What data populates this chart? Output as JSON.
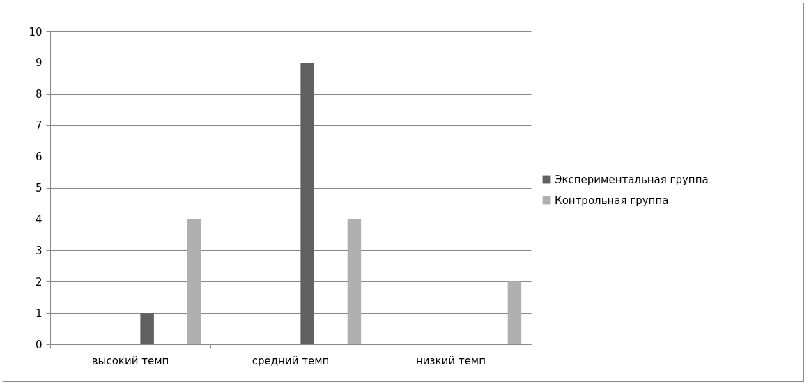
{
  "chart_data": {
    "type": "bar",
    "categories": [
      "высокий темп",
      "средний темп",
      "низкий темп"
    ],
    "series": [
      {
        "name": "Экспериментальная группа",
        "color": "#606060",
        "values": [
          1,
          9,
          0
        ]
      },
      {
        "name": "Контрольная группа",
        "color": "#b0b0b0",
        "values": [
          4,
          4,
          2
        ]
      }
    ],
    "ylim": [
      0,
      10
    ],
    "yticks": [
      0,
      1,
      2,
      3,
      4,
      5,
      6,
      7,
      8,
      9,
      10
    ],
    "grid": "y",
    "legend": "right"
  }
}
